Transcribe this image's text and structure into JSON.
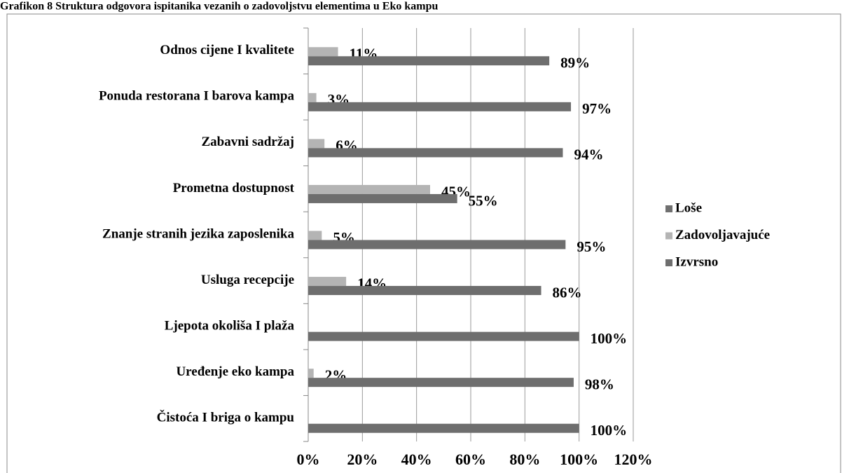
{
  "chart_data": {
    "type": "bar",
    "orientation": "horizontal",
    "title": "Grafikon 8 Struktura odgovora ispitanika vezanih o zadovoljstvu elementima u Eko kampu",
    "categories": [
      "Odnos cijene I kvalitete",
      "Ponuda restorana I barova kampa",
      "Zabavni sadržaj",
      "Prometna dostupnost",
      "Znanje stranih jezika zaposlenika",
      "Usluga recepcije",
      "Ljepota okoliša I plaža",
      "Uređenje eko kampa",
      "Čistoća I briga o kampu"
    ],
    "series": [
      {
        "name": "Loše",
        "color": "#707070",
        "values": [
          null,
          null,
          null,
          null,
          null,
          null,
          null,
          null,
          null
        ]
      },
      {
        "name": "Zadovoljavajuće",
        "color": "#b4b4b4",
        "values": [
          11,
          3,
          6,
          45,
          5,
          14,
          null,
          2,
          null
        ],
        "value_labels": [
          "11%",
          "3%",
          "6%",
          "45%",
          "5%",
          "14%",
          null,
          "2%",
          null
        ]
      },
      {
        "name": "Izvrsno",
        "color": "#6e6e6e",
        "values": [
          89,
          97,
          94,
          55,
          95,
          86,
          100,
          98,
          100
        ],
        "value_labels": [
          "89%",
          "97%",
          "94%",
          "55%",
          "95%",
          "86%",
          "100%",
          "98%",
          "100%"
        ]
      }
    ],
    "xlim": [
      0,
      120
    ],
    "xticks": [
      {
        "value": 0,
        "label": "0%"
      },
      {
        "value": 20,
        "label": "20%"
      },
      {
        "value": 40,
        "label": "40%"
      },
      {
        "value": 60,
        "label": "60%"
      },
      {
        "value": 80,
        "label": "80%"
      },
      {
        "value": 100,
        "label": "100%"
      },
      {
        "value": 120,
        "label": "120%"
      }
    ],
    "grid": true,
    "legend": "right"
  }
}
